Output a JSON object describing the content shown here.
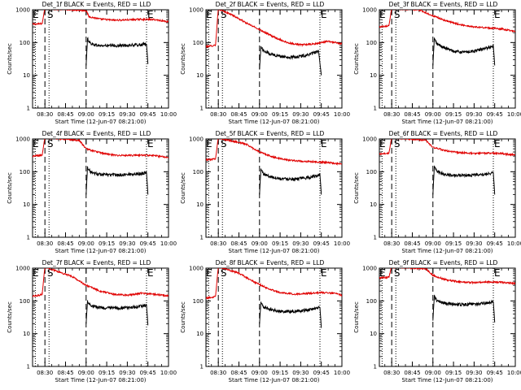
{
  "figure": {
    "event_colors": {
      "events": "#000000",
      "lld": "#e00000"
    },
    "marker_labels": [
      "E",
      "S",
      "E"
    ]
  },
  "chart_data": [
    {
      "type": "line",
      "title": "Det_1f BLACK = Events, RED = LLD",
      "xlabel": "Start Time (12-Jun-07 08:21:00)",
      "ylabel": "Counts/sec",
      "yscale": "log",
      "ylim": [
        1,
        1000
      ],
      "yticks": [
        "1",
        "10",
        "100",
        "1000"
      ],
      "xlim": [
        "08:21",
        "10:00"
      ],
      "xticks": [
        "08:30",
        "08:45",
        "09:00",
        "09:15",
        "09:30",
        "09:45",
        "10:00"
      ],
      "marker_lines": [
        {
          "time": "08:23",
          "style": "dotted"
        },
        {
          "time": "08:30",
          "style": "dashed"
        },
        {
          "time": "08:33",
          "style": "dotted"
        },
        {
          "time": "09:00",
          "style": "dashed"
        },
        {
          "time": "09:44",
          "style": "dotted"
        }
      ],
      "series": [
        {
          "name": "RED = LLD",
          "x": [
            "08:21",
            "08:26",
            "08:28",
            "08:30",
            "08:31",
            "09:00",
            "09:02",
            "09:10",
            "09:20",
            "09:30",
            "09:40",
            "09:50",
            "10:00"
          ],
          "y": [
            360,
            370,
            380,
            1150,
            1100,
            950,
            620,
            520,
            480,
            490,
            510,
            500,
            430
          ]
        },
        {
          "name": "BLACK = Events",
          "x": [
            "09:00",
            "09:01",
            "09:03",
            "09:06",
            "09:10",
            "09:20",
            "09:30",
            "09:40",
            "09:44",
            "09:45"
          ],
          "y": [
            20,
            130,
            95,
            85,
            80,
            80,
            82,
            85,
            90,
            22
          ]
        }
      ]
    },
    {
      "type": "line",
      "title": "Det_2f BLACK = Events, RED = LLD",
      "xlabel": "Start Time (12-Jun-07 08:21:00)",
      "ylabel": "Counts/sec",
      "yscale": "log",
      "ylim": [
        1,
        1000
      ],
      "yticks": [
        "1",
        "10",
        "100",
        "1000"
      ],
      "xlim": [
        "08:21",
        "10:00"
      ],
      "xticks": [
        "08:30",
        "08:45",
        "09:00",
        "09:15",
        "09:30",
        "09:45",
        "10:00"
      ],
      "marker_lines": [
        {
          "time": "08:23",
          "style": "dotted"
        },
        {
          "time": "08:30",
          "style": "dashed"
        },
        {
          "time": "08:33",
          "style": "dotted"
        },
        {
          "time": "09:00",
          "style": "dashed"
        },
        {
          "time": "09:44",
          "style": "dotted"
        }
      ],
      "series": [
        {
          "name": "RED = LLD",
          "x": [
            "08:21",
            "08:26",
            "08:28",
            "08:30",
            "08:31",
            "08:40",
            "08:50",
            "09:00",
            "09:10",
            "09:20",
            "09:30",
            "09:40",
            "09:50",
            "10:00"
          ],
          "y": [
            75,
            80,
            85,
            1150,
            1000,
            700,
            400,
            250,
            150,
            100,
            85,
            90,
            110,
            90
          ]
        },
        {
          "name": "BLACK = Events",
          "x": [
            "09:00",
            "09:01",
            "09:03",
            "09:08",
            "09:15",
            "09:22",
            "09:30",
            "09:38",
            "09:43",
            "09:45"
          ],
          "y": [
            15,
            75,
            55,
            45,
            38,
            35,
            38,
            45,
            55,
            10
          ]
        }
      ]
    },
    {
      "type": "line",
      "title": "Det_3f BLACK = Events, RED = LLD",
      "xlabel": "Start Time (12-Jun-07 08:21:00)",
      "ylabel": "Counts/sec",
      "yscale": "log",
      "ylim": [
        1,
        1000
      ],
      "yticks": [
        "1",
        "10",
        "100",
        "1000"
      ],
      "xlim": [
        "08:21",
        "10:00"
      ],
      "xticks": [
        "08:30",
        "08:45",
        "09:00",
        "09:15",
        "09:30",
        "09:45",
        "10:00"
      ],
      "marker_lines": [
        {
          "time": "08:23",
          "style": "dotted"
        },
        {
          "time": "08:30",
          "style": "dashed"
        },
        {
          "time": "08:33",
          "style": "dotted"
        },
        {
          "time": "09:00",
          "style": "dashed"
        },
        {
          "time": "09:44",
          "style": "dotted"
        }
      ],
      "series": [
        {
          "name": "RED = LLD",
          "x": [
            "08:21",
            "08:26",
            "08:28",
            "08:30",
            "08:31",
            "08:50",
            "09:00",
            "09:10",
            "09:20",
            "09:30",
            "09:40",
            "09:50",
            "10:00"
          ],
          "y": [
            300,
            320,
            330,
            1150,
            1100,
            1000,
            650,
            450,
            350,
            300,
            280,
            260,
            220
          ]
        },
        {
          "name": "BLACK = Events",
          "x": [
            "09:00",
            "09:01",
            "09:03",
            "09:08",
            "09:15",
            "09:22",
            "09:30",
            "09:38",
            "09:44",
            "09:45"
          ],
          "y": [
            20,
            130,
            90,
            70,
            55,
            50,
            55,
            65,
            80,
            20
          ]
        }
      ]
    },
    {
      "type": "line",
      "title": "Det_4f BLACK = Events, RED = LLD",
      "xlabel": "Start Time (12-Jun-07 08:21:00)",
      "ylabel": "Counts/sec",
      "yscale": "log",
      "ylim": [
        1,
        1000
      ],
      "yticks": [
        "1",
        "10",
        "100",
        "1000"
      ],
      "xlim": [
        "08:21",
        "10:00"
      ],
      "xticks": [
        "08:30",
        "08:45",
        "09:00",
        "09:15",
        "09:30",
        "09:45",
        "10:00"
      ],
      "marker_lines": [
        {
          "time": "08:23",
          "style": "dotted"
        },
        {
          "time": "08:30",
          "style": "dashed"
        },
        {
          "time": "08:33",
          "style": "dotted"
        },
        {
          "time": "09:00",
          "style": "dashed"
        },
        {
          "time": "09:44",
          "style": "dotted"
        }
      ],
      "series": [
        {
          "name": "RED = LLD",
          "x": [
            "08:21",
            "08:26",
            "08:28",
            "08:30",
            "08:31",
            "08:55",
            "09:00",
            "09:10",
            "09:20",
            "09:30",
            "09:40",
            "09:50",
            "10:00"
          ],
          "y": [
            300,
            310,
            320,
            1150,
            1100,
            900,
            500,
            380,
            320,
            310,
            320,
            310,
            270
          ]
        },
        {
          "name": "BLACK = Events",
          "x": [
            "09:00",
            "09:01",
            "09:03",
            "09:08",
            "09:15",
            "09:25",
            "09:35",
            "09:42",
            "09:44",
            "09:45"
          ],
          "y": [
            20,
            140,
            100,
            85,
            80,
            80,
            85,
            90,
            95,
            20
          ]
        }
      ]
    },
    {
      "type": "line",
      "title": "Det_5f BLACK = Events, RED = LLD",
      "xlabel": "Start Time (12-Jun-07 08:21:00)",
      "ylabel": "Counts/sec",
      "yscale": "log",
      "ylim": [
        1,
        1000
      ],
      "yticks": [
        "1",
        "10",
        "100",
        "1000"
      ],
      "xlim": [
        "08:21",
        "10:00"
      ],
      "xticks": [
        "08:30",
        "08:45",
        "09:00",
        "09:15",
        "09:30",
        "09:45",
        "10:00"
      ],
      "marker_lines": [
        {
          "time": "08:23",
          "style": "dotted"
        },
        {
          "time": "08:30",
          "style": "dashed"
        },
        {
          "time": "08:33",
          "style": "dotted"
        },
        {
          "time": "09:00",
          "style": "dashed"
        },
        {
          "time": "09:44",
          "style": "dotted"
        }
      ],
      "series": [
        {
          "name": "RED = LLD",
          "x": [
            "08:21",
            "08:26",
            "08:28",
            "08:30",
            "08:31",
            "08:50",
            "09:00",
            "09:10",
            "09:20",
            "09:30",
            "09:40",
            "09:50",
            "10:00"
          ],
          "y": [
            230,
            240,
            250,
            1150,
            1050,
            700,
            400,
            280,
            230,
            210,
            200,
            190,
            170
          ]
        },
        {
          "name": "BLACK = Events",
          "x": [
            "09:00",
            "09:01",
            "09:03",
            "09:08",
            "09:15",
            "09:25",
            "09:35",
            "09:42",
            "09:44",
            "09:45"
          ],
          "y": [
            20,
            120,
            85,
            70,
            62,
            60,
            65,
            75,
            85,
            20
          ]
        }
      ]
    },
    {
      "type": "line",
      "title": "Det_6f BLACK = Events, RED = LLD",
      "xlabel": "Start Time (12-Jun-07 08:21:00)",
      "ylabel": "Counts/sec",
      "yscale": "log",
      "ylim": [
        1,
        1000
      ],
      "yticks": [
        "1",
        "10",
        "100",
        "1000"
      ],
      "xlim": [
        "08:21",
        "10:00"
      ],
      "xticks": [
        "08:30",
        "08:45",
        "09:00",
        "09:15",
        "09:30",
        "09:45",
        "10:00"
      ],
      "marker_lines": [
        {
          "time": "08:23",
          "style": "dotted"
        },
        {
          "time": "08:30",
          "style": "dashed"
        },
        {
          "time": "08:33",
          "style": "dotted"
        },
        {
          "time": "09:00",
          "style": "dashed"
        },
        {
          "time": "09:44",
          "style": "dotted"
        }
      ],
      "series": [
        {
          "name": "RED = LLD",
          "x": [
            "08:21",
            "08:26",
            "08:28",
            "08:30",
            "08:31",
            "08:55",
            "09:00",
            "09:10",
            "09:20",
            "09:30",
            "09:40",
            "09:50",
            "10:00"
          ],
          "y": [
            350,
            360,
            370,
            1150,
            1100,
            900,
            550,
            430,
            380,
            360,
            370,
            360,
            320
          ]
        },
        {
          "name": "BLACK = Events",
          "x": [
            "09:00",
            "09:01",
            "09:03",
            "09:08",
            "09:15",
            "09:25",
            "09:35",
            "09:42",
            "09:44",
            "09:45"
          ],
          "y": [
            20,
            140,
            100,
            85,
            78,
            78,
            82,
            90,
            95,
            20
          ]
        }
      ]
    },
    {
      "type": "line",
      "title": "Det_7f BLACK = Events, RED = LLD",
      "xlabel": "Start Time (12-Jun-07 08:21:00)",
      "ylabel": "Counts/sec",
      "yscale": "log",
      "ylim": [
        1,
        1000
      ],
      "yticks": [
        "1",
        "10",
        "100",
        "1000"
      ],
      "xlim": [
        "08:21",
        "10:00"
      ],
      "xticks": [
        "08:30",
        "08:45",
        "09:00",
        "09:15",
        "09:30",
        "09:45",
        "10:00"
      ],
      "marker_lines": [
        {
          "time": "08:23",
          "style": "dotted"
        },
        {
          "time": "08:30",
          "style": "dashed"
        },
        {
          "time": "08:33",
          "style": "dotted"
        },
        {
          "time": "09:00",
          "style": "dashed"
        },
        {
          "time": "09:44",
          "style": "dotted"
        }
      ],
      "series": [
        {
          "name": "RED = LLD",
          "x": [
            "08:21",
            "08:26",
            "08:28",
            "08:30",
            "08:31",
            "08:50",
            "09:00",
            "09:10",
            "09:20",
            "09:30",
            "09:40",
            "09:50",
            "10:00"
          ],
          "y": [
            140,
            150,
            160,
            1150,
            1050,
            550,
            300,
            200,
            160,
            150,
            170,
            160,
            140
          ]
        },
        {
          "name": "BLACK = Events",
          "x": [
            "09:00",
            "09:01",
            "09:03",
            "09:08",
            "09:15",
            "09:25",
            "09:35",
            "09:42",
            "09:44",
            "09:45"
          ],
          "y": [
            20,
            100,
            75,
            65,
            60,
            60,
            65,
            70,
            75,
            18
          ]
        }
      ]
    },
    {
      "type": "line",
      "title": "Det_8f BLACK = Events, RED = LLD",
      "xlabel": "Start Time (12-Jun-07 08:21:00)",
      "ylabel": "Counts/sec",
      "yscale": "log",
      "ylim": [
        1,
        1000
      ],
      "yticks": [
        "1",
        "10",
        "100",
        "1000"
      ],
      "xlim": [
        "08:21",
        "10:00"
      ],
      "xticks": [
        "08:30",
        "08:45",
        "09:00",
        "09:15",
        "09:30",
        "09:45",
        "10:00"
      ],
      "marker_lines": [
        {
          "time": "08:23",
          "style": "dotted"
        },
        {
          "time": "08:30",
          "style": "dashed"
        },
        {
          "time": "08:33",
          "style": "dotted"
        },
        {
          "time": "09:00",
          "style": "dashed"
        },
        {
          "time": "09:44",
          "style": "dotted"
        }
      ],
      "series": [
        {
          "name": "RED = LLD",
          "x": [
            "08:21",
            "08:26",
            "08:28",
            "08:30",
            "08:31",
            "08:45",
            "08:55",
            "09:05",
            "09:15",
            "09:25",
            "09:35",
            "09:45",
            "09:55",
            "10:00"
          ],
          "y": [
            120,
            130,
            140,
            1150,
            1100,
            700,
            400,
            250,
            180,
            160,
            170,
            180,
            170,
            150
          ]
        },
        {
          "name": "BLACK = Events",
          "x": [
            "09:00",
            "09:01",
            "09:03",
            "09:08",
            "09:15",
            "09:25",
            "09:35",
            "09:42",
            "09:44",
            "09:45"
          ],
          "y": [
            20,
            90,
            65,
            55,
            48,
            48,
            52,
            60,
            65,
            15
          ]
        }
      ]
    },
    {
      "type": "line",
      "title": "Det_9f BLACK = Events, RED = LLD",
      "xlabel": "Start Time (12-Jun-07 08:21:00)",
      "ylabel": "Counts/sec",
      "yscale": "log",
      "ylim": [
        1,
        1000
      ],
      "yticks": [
        "1",
        "10",
        "100",
        "1000"
      ],
      "xlim": [
        "08:21",
        "10:00"
      ],
      "xticks": [
        "08:30",
        "08:45",
        "09:00",
        "09:15",
        "09:30",
        "09:45",
        "10:00"
      ],
      "marker_lines": [
        {
          "time": "08:23",
          "style": "dotted"
        },
        {
          "time": "08:30",
          "style": "dashed"
        },
        {
          "time": "08:33",
          "style": "dotted"
        },
        {
          "time": "09:00",
          "style": "dashed"
        },
        {
          "time": "09:44",
          "style": "dotted"
        }
      ],
      "series": [
        {
          "name": "RED = LLD",
          "x": [
            "08:21",
            "08:26",
            "08:28",
            "08:30",
            "08:31",
            "08:55",
            "09:00",
            "09:10",
            "09:20",
            "09:30",
            "09:40",
            "09:50",
            "10:00"
          ],
          "y": [
            500,
            520,
            540,
            1150,
            1100,
            950,
            600,
            430,
            380,
            360,
            380,
            370,
            340
          ]
        },
        {
          "name": "BLACK = Events",
          "x": [
            "09:00",
            "09:01",
            "09:03",
            "09:08",
            "09:15",
            "09:25",
            "09:35",
            "09:42",
            "09:44",
            "09:45"
          ],
          "y": [
            25,
            140,
            100,
            85,
            78,
            78,
            82,
            90,
            95,
            22
          ]
        }
      ]
    }
  ]
}
